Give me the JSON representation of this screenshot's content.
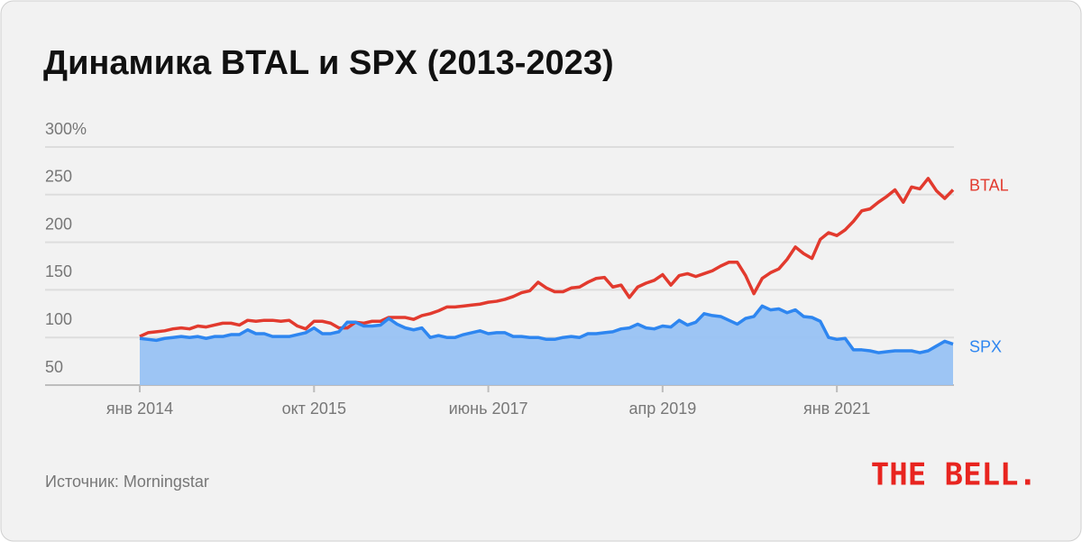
{
  "chart_data": {
    "type": "line",
    "title": "Динамика BTAL и SPX (2013-2023)",
    "source": "Источник: Morningstar",
    "logo": "THE BELL.",
    "categories": [
      "янв 2014",
      null,
      null,
      null,
      null,
      null,
      null,
      null,
      null,
      null,
      null,
      null,
      null,
      null,
      null,
      null,
      null,
      null,
      null,
      null,
      null,
      "окт 2015",
      null,
      null,
      null,
      null,
      null,
      null,
      null,
      null,
      null,
      null,
      null,
      null,
      null,
      null,
      null,
      null,
      null,
      null,
      null,
      null,
      "июнь 2017",
      null,
      null,
      null,
      null,
      null,
      null,
      null,
      null,
      null,
      null,
      null,
      null,
      null,
      null,
      null,
      null,
      null,
      null,
      null,
      null,
      "апр 2019",
      null,
      null,
      null,
      null,
      null,
      null,
      null,
      null,
      null,
      null,
      null,
      null,
      null,
      null,
      null,
      null,
      null,
      null,
      null,
      null,
      "янв 2021",
      null,
      null,
      null,
      null,
      null,
      null,
      null,
      null,
      null,
      null,
      null,
      null,
      null,
      null
    ],
    "series": [
      {
        "name": "BTAL",
        "color": "#e23a2e",
        "values": [
          101,
          105,
          106,
          107,
          109,
          110,
          109,
          112,
          111,
          113,
          115,
          115,
          113,
          118,
          117,
          118,
          118,
          117,
          118,
          112,
          109,
          117,
          117,
          115,
          110,
          110,
          116,
          115,
          117,
          117,
          121,
          121,
          121,
          119,
          123,
          125,
          128,
          132,
          132,
          133,
          134,
          135,
          137,
          138,
          140,
          143,
          147,
          149,
          158,
          152,
          148,
          148,
          152,
          153,
          158,
          162,
          163,
          153,
          155,
          142,
          153,
          157,
          160,
          166,
          155,
          165,
          167,
          164,
          167,
          170,
          175,
          179,
          179,
          165,
          146,
          162,
          168,
          172,
          182,
          195,
          188,
          183,
          203,
          210,
          207,
          213,
          222,
          233,
          235,
          242,
          248,
          255,
          242,
          258,
          256,
          267,
          254,
          246,
          255
        ]
      },
      {
        "name": "SPX",
        "color": "#2e86f0",
        "area": "#98c2f3",
        "values": [
          99,
          98,
          97,
          99,
          100,
          101,
          100,
          101,
          99,
          101,
          101,
          103,
          103,
          108,
          104,
          104,
          101,
          101,
          101,
          103,
          105,
          110,
          104,
          104,
          106,
          116,
          116,
          112,
          112,
          113,
          120,
          114,
          110,
          108,
          110,
          100,
          102,
          100,
          100,
          103,
          105,
          107,
          104,
          105,
          105,
          101,
          101,
          100,
          100,
          98,
          98,
          100,
          101,
          100,
          104,
          104,
          105,
          106,
          109,
          110,
          114,
          110,
          109,
          112,
          111,
          118,
          113,
          116,
          125,
          123,
          122,
          118,
          114,
          120,
          122,
          133,
          129,
          130,
          126,
          129,
          122,
          121,
          117,
          100,
          98,
          99,
          87,
          87,
          86,
          84,
          85,
          86,
          86,
          86,
          84,
          86,
          91,
          96,
          93
        ]
      }
    ],
    "ylim": [
      50,
      300
    ],
    "yticks": [
      50,
      100,
      150,
      200,
      250,
      {
        "value": 300,
        "label": "300%"
      }
    ],
    "grid": true
  }
}
